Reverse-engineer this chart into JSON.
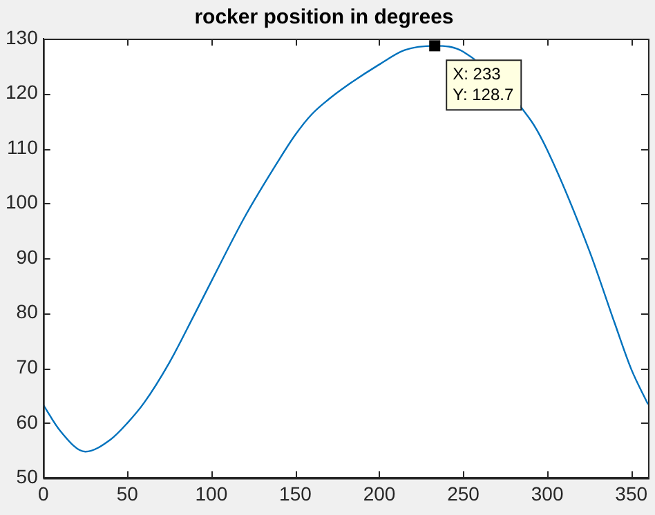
{
  "chart_data": {
    "type": "line",
    "title": "rocker position in degrees",
    "x": [
      0,
      10,
      25,
      40,
      50,
      60,
      75,
      90,
      100,
      120,
      140,
      150,
      160,
      170,
      180,
      200,
      215,
      233,
      250,
      290,
      300,
      325,
      340,
      350,
      360
    ],
    "series": [
      {
        "color": "#0072bd",
        "values": [
          63.3,
          58.6,
          54.8,
          57,
          60,
          63.7,
          71,
          79.8,
          85.8,
          97.6,
          107.8,
          112.5,
          116.3,
          119,
          121.3,
          125.3,
          127.9,
          128.7,
          127.6,
          115.2,
          109.7,
          91.4,
          78.3,
          69.8,
          63.4
        ]
      }
    ],
    "xlim": [
      0,
      360
    ],
    "xticks": [
      0,
      50,
      100,
      150,
      200,
      250,
      300,
      350
    ],
    "ylim": [
      50,
      130
    ],
    "yticks": [
      50,
      60,
      70,
      80,
      90,
      100,
      110,
      120,
      130
    ],
    "grid": false,
    "legend": false,
    "marker": "none",
    "line_style": "solid",
    "annotations": [
      {
        "text": "X: 233\nY: 128.7",
        "x": 233,
        "y": 128.7
      }
    ]
  }
}
